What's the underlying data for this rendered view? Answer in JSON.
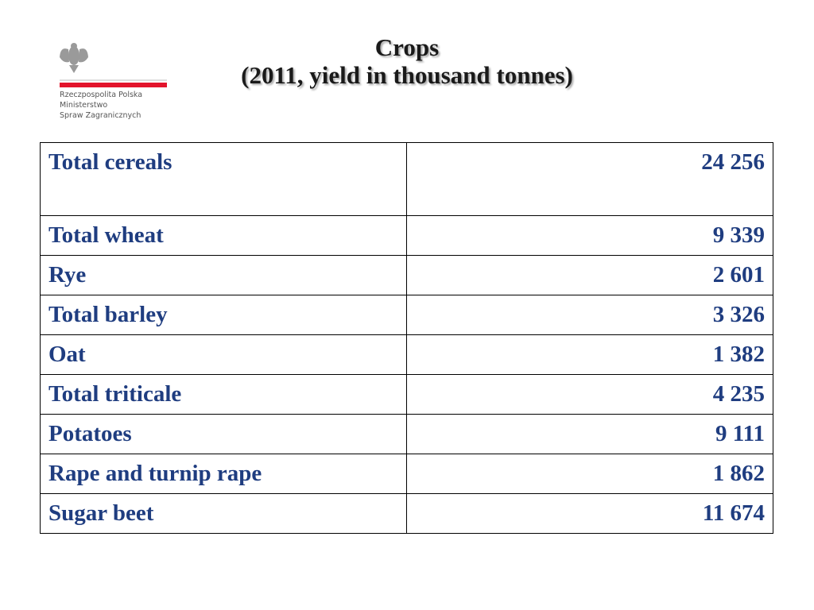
{
  "header": {
    "title_line1": "Crops",
    "title_line2": "(2011, yield in thousand tonnes)"
  },
  "logo": {
    "line1": "Rzeczpospolita Polska",
    "line2": "Ministerstwo",
    "line3": "Spraw Zagranicznych"
  },
  "table": {
    "rows": [
      [
        "Total cereals",
        "24 256"
      ],
      [
        "Total wheat",
        "9 339"
      ],
      [
        "Rye",
        "2 601"
      ],
      [
        "Total barley",
        "3 326"
      ],
      [
        "Oat",
        "1 382"
      ],
      [
        "Total triticale",
        "4 235"
      ],
      [
        "Potatoes",
        "9 111"
      ],
      [
        "Rape and turnip rape",
        "1 862"
      ],
      [
        "Sugar beet",
        "11 674"
      ]
    ]
  }
}
